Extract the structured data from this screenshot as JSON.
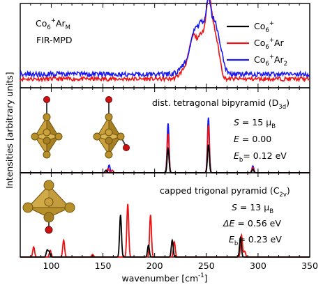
{
  "chart_data": {
    "type": "line",
    "xlabel": "wavenumber [cm",
    "xlabel_sup": "-1",
    "xlabel_end": "]",
    "ylabel": "Intensities [arbitrary units]",
    "xlim": [
      70,
      350
    ],
    "xticks": [
      100,
      150,
      200,
      250,
      300,
      350
    ],
    "panels": [
      {
        "id": "fir-mpd",
        "label": {
          "l1_a": "Co",
          "l1_sub": "6",
          "l1_sup": "+",
          "l1_b": "Ar",
          "l1_sub2": "M",
          "l2": "FIR-MPD"
        },
        "ylim": [
          0,
          1.05
        ],
        "legend": [
          {
            "base": "Co",
            "sub": "6",
            "sup": "+",
            "tail": "",
            "tail_sub": "",
            "color": "#000000"
          },
          {
            "base": "Co",
            "sub": "6",
            "sup": "+",
            "tail": "Ar",
            "tail_sub": "",
            "color": "#ee1111"
          },
          {
            "base": "Co",
            "sub": "6",
            "sup": "+",
            "tail": "Ar",
            "tail_sub": "2",
            "color": "#1a1aee"
          }
        ],
        "series": [
          {
            "color": "#ee1111",
            "baseline": 0.11,
            "noise": 0.025,
            "peaks": [
              [
                238,
                0.5,
                4
              ],
              [
                246,
                0.48,
                3
              ],
              [
                252,
                0.84,
                2.5
              ],
              [
                257,
                0.55,
                3
              ],
              [
                262,
                0.22,
                2.5
              ],
              [
                230,
                0.12,
                5
              ]
            ]
          },
          {
            "color": "#1a1aee",
            "baseline": 0.17,
            "noise": 0.03,
            "peaks": [
              [
                239,
                0.5,
                4
              ],
              [
                246,
                0.5,
                3
              ],
              [
                252,
                0.8,
                2.5
              ],
              [
                258,
                0.6,
                3
              ],
              [
                264,
                0.25,
                3
              ],
              [
                230,
                0.12,
                5
              ]
            ]
          }
        ]
      },
      {
        "id": "d3d",
        "annotation": {
          "title": "dist. tetragonal bipyramid (D",
          "title_sub": "3d",
          "title_end": ")",
          "s_label": "S",
          "s_value": " = 15 μ",
          "s_sub": "B",
          "e_label": "E",
          "e_value": " = 0.00",
          "eb_label": "E",
          "eb_sub": "b",
          "eb_value": "= 0.12 eV"
        },
        "ylim": [
          0,
          1.0
        ],
        "sticks": {
          "black": {
            "color": "#000000",
            "lines": [
              [
                213,
                0.28
              ],
              [
                252,
                0.33
              ],
              [
                153,
                0.03
              ],
              [
                295,
                0.04
              ]
            ]
          },
          "red": {
            "color": "#ee1111",
            "lines": [
              [
                213,
                0.46
              ],
              [
                252,
                0.56
              ],
              [
                155,
                0.05
              ],
              [
                159,
                0.03
              ],
              [
                295,
                0.06
              ]
            ]
          },
          "blue": {
            "color": "#1a1aee",
            "lines": [
              [
                213,
                0.58
              ],
              [
                252,
                0.65
              ],
              [
                156,
                0.09
              ],
              [
                295,
                0.08
              ]
            ]
          }
        }
      },
      {
        "id": "c2v",
        "annotation": {
          "title": "capped trigonal pyramid (C",
          "title_sub": "2v",
          "title_end": ")",
          "s_label": "S",
          "s_value": " = 13  μ",
          "s_sub": "B",
          "e_label": "ΔE",
          "e_value": " = 0.56 eV",
          "eb_label": "E",
          "eb_sub": "b",
          "eb_value": "= 0.23 eV"
        },
        "ylim": [
          0,
          1.0
        ],
        "sticks": {
          "black": {
            "color": "#000000",
            "lines": [
              [
                96,
                0.08
              ],
              [
                98,
                0.06
              ],
              [
                167,
                0.5
              ],
              [
                194,
                0.14
              ],
              [
                217,
                0.2
              ],
              [
                283,
                0.23
              ]
            ]
          },
          "red": {
            "color": "#ee1111",
            "lines": [
              [
                83,
                0.12
              ],
              [
                99,
                0.08
              ],
              [
                112,
                0.2
              ],
              [
                140,
                0.03
              ],
              [
                174,
                0.63
              ],
              [
                196,
                0.5
              ],
              [
                219,
                0.18
              ],
              [
                284,
                0.26
              ],
              [
                287,
                0.07
              ]
            ]
          }
        }
      }
    ]
  },
  "colors": {
    "black": "#000000",
    "red": "#ee1111",
    "blue": "#1a1aee",
    "gold": "#b8902a",
    "argon": "#cc1111"
  }
}
